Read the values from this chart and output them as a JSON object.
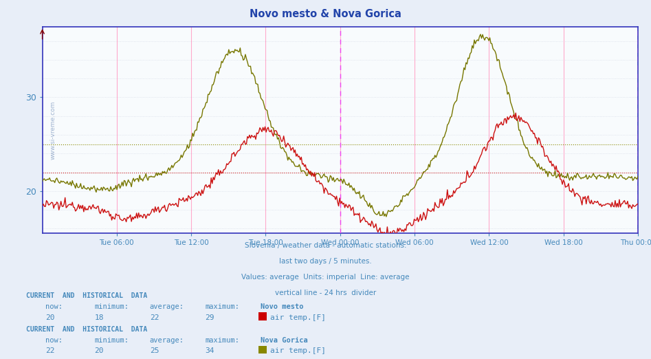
{
  "title": "Novo mesto & Nova Gorica",
  "fig_bg_color": "#e8eef8",
  "plot_bg_color": "#f8fbfd",
  "grid_color": "#d8dde8",
  "axis_color": "#3333bb",
  "title_color": "#2244aa",
  "text_color": "#4488bb",
  "label_color": "#5599cc",
  "subtitle_lines": [
    "Slovenia / weather data - automatic stations.",
    "last two days / 5 minutes.",
    "Values: average  Units: imperial  Line: average",
    "vertical line - 24 hrs  divider"
  ],
  "watermark": "www.si-vreme.com",
  "y_min": 15.5,
  "y_max": 37.5,
  "yticks": [
    20,
    30
  ],
  "novo_avg": 22,
  "nova_avg": 25,
  "novo_color": "#cc1111",
  "nova_color": "#777700",
  "novo_avg_color": "#cc1111",
  "nova_avg_color": "#888800",
  "divider_color": "#ee44ee",
  "pink_grid_color": "#ffaacc",
  "novo_stats": {
    "now": 20,
    "min": 18,
    "avg": 22,
    "max": 29
  },
  "nova_stats": {
    "now": 22,
    "min": 20,
    "avg": 25,
    "max": 34
  },
  "novo_swatch": "#cc0000",
  "nova_swatch": "#888800",
  "x_tick_hours": [
    6,
    12,
    18,
    24,
    30,
    36,
    42,
    48
  ],
  "x_tick_labels": [
    "Tue 06:00",
    "Tue 12:00",
    "Tue 18:00",
    "Wed 00:00",
    "Wed 06:00",
    "Wed 12:00",
    "Wed 18:00",
    "Thu 00:00"
  ]
}
